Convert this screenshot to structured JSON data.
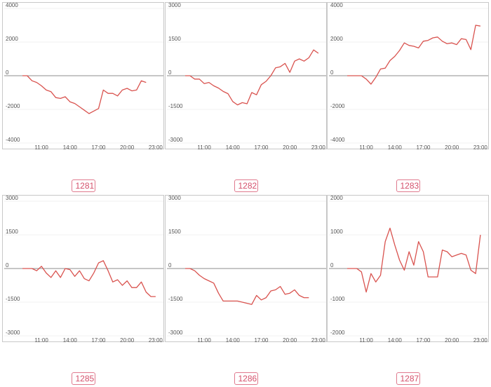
{
  "series_color": "#d9534f",
  "baseline_color": "#8c8c8c",
  "chart_data": [
    {
      "type": "line",
      "label": "1281",
      "x": [
        9,
        9.5,
        10,
        10.5,
        11,
        11.5,
        12,
        12.5,
        13,
        13.5,
        14,
        14.5,
        15,
        15.5,
        16,
        16.5,
        17,
        17.5,
        18,
        18.5,
        19,
        19.5,
        20,
        20.5,
        21,
        21.5,
        22,
        22.5,
        23
      ],
      "y": [
        0,
        0,
        -300,
        -400,
        -600,
        -850,
        -950,
        -1300,
        -1350,
        -1250,
        -1550,
        -1650,
        -1850,
        -2050,
        -2250,
        -2100,
        -1950,
        -850,
        -1050,
        -1050,
        -1200,
        -850,
        -750,
        -900,
        -850,
        -300,
        -400,
        null,
        null
      ],
      "ylim": [
        -4000,
        4000
      ],
      "yticks": [
        -4000,
        -2000,
        0,
        2000,
        4000
      ],
      "xticks": [
        11,
        14,
        17,
        20,
        23
      ],
      "xtick_labels": [
        "11:00",
        "14:00",
        "17:00",
        "20:00",
        "23:00"
      ],
      "grid": true
    },
    {
      "type": "line",
      "label": "1282",
      "x": [
        9,
        9.5,
        10,
        10.5,
        11,
        11.5,
        12,
        12.5,
        13,
        13.5,
        14,
        14.5,
        15,
        15.5,
        16,
        16.5,
        17,
        17.5,
        18,
        18.5,
        19,
        19.5,
        20,
        20.5,
        21,
        21.5,
        22,
        22.5,
        23
      ],
      "y": [
        0,
        0,
        -150,
        -150,
        -350,
        -300,
        -450,
        -550,
        -700,
        -800,
        -1150,
        -1300,
        -1200,
        -1250,
        -750,
        -850,
        -400,
        -250,
        0,
        350,
        400,
        550,
        150,
        650,
        750,
        650,
        800,
        1150,
        1000
      ],
      "ylim": [
        -3000,
        3000
      ],
      "yticks": [
        -3000,
        -1500,
        0,
        1500,
        3000
      ],
      "xticks": [
        11,
        14,
        17,
        20,
        23
      ],
      "xtick_labels": [
        "11:00",
        "14:00",
        "17:00",
        "20:00",
        "23:00"
      ],
      "grid": true
    },
    {
      "type": "line",
      "label": "1283",
      "x": [
        9,
        9.5,
        10,
        10.5,
        11,
        11.5,
        12,
        12.5,
        13,
        13.5,
        14,
        14.5,
        15,
        15.5,
        16,
        16.5,
        17,
        17.5,
        18,
        18.5,
        19,
        19.5,
        20,
        20.5,
        21,
        21.5,
        22,
        22.5,
        23
      ],
      "y": [
        0,
        0,
        0,
        0,
        -200,
        -500,
        -100,
        400,
        450,
        900,
        1150,
        1500,
        1950,
        1800,
        1750,
        1650,
        2050,
        2100,
        2250,
        2300,
        2050,
        1900,
        1950,
        1850,
        2200,
        2150,
        1550,
        3000,
        2950
      ],
      "ylim": [
        -4000,
        4000
      ],
      "yticks": [
        -4000,
        -2000,
        0,
        2000,
        4000
      ],
      "xticks": [
        11,
        14,
        17,
        20,
        23
      ],
      "xtick_labels": [
        "11:00",
        "14:00",
        "17:00",
        "20:00",
        "23:00"
      ],
      "grid": true
    },
    {
      "type": "line",
      "label": "1285",
      "x": [
        9,
        9.5,
        10,
        10.5,
        11,
        11.5,
        12,
        12.5,
        13,
        13.5,
        14,
        14.5,
        15,
        15.5,
        16,
        16.5,
        17,
        17.5,
        18,
        18.5,
        19,
        19.5,
        20,
        20.5,
        21,
        21.5,
        22,
        22.5,
        23
      ],
      "y": [
        0,
        0,
        0,
        -100,
        100,
        -200,
        -400,
        -100,
        -400,
        0,
        -50,
        -350,
        -100,
        -450,
        -550,
        -200,
        250,
        350,
        -100,
        -600,
        -500,
        -750,
        -550,
        -850,
        -850,
        -600,
        -1050,
        -1250,
        -1250
      ],
      "ylim": [
        -3000,
        3000
      ],
      "yticks": [
        -3000,
        -1500,
        0,
        1500,
        3000
      ],
      "xticks": [
        11,
        14,
        17,
        20,
        23
      ],
      "xtick_labels": [
        "11:00",
        "14:00",
        "17:00",
        "20:00",
        "23:00"
      ],
      "grid": true
    },
    {
      "type": "line",
      "label": "1286",
      "x": [
        9,
        9.5,
        10,
        10.5,
        11,
        11.5,
        12,
        12.5,
        13,
        13.5,
        14,
        14.5,
        15,
        15.5,
        16,
        16.5,
        17,
        17.5,
        18,
        18.5,
        19,
        19.5,
        20,
        20.5,
        21,
        21.5,
        22,
        22.5,
        23
      ],
      "y": [
        0,
        0,
        -100,
        -300,
        -450,
        -550,
        -650,
        -1100,
        -1450,
        -1450,
        -1450,
        -1450,
        -1500,
        -1550,
        -1600,
        -1200,
        -1400,
        -1300,
        -1000,
        -950,
        -800,
        -1150,
        -1100,
        -950,
        -1200,
        -1300,
        -1300,
        null,
        null
      ],
      "ylim": [
        -3000,
        3000
      ],
      "yticks": [
        -3000,
        -1500,
        0,
        1500,
        3000
      ],
      "xticks": [
        11,
        14,
        17,
        20,
        23
      ],
      "xtick_labels": [
        "11:00",
        "14:00",
        "17:00",
        "20:00",
        "23:00"
      ],
      "grid": true
    },
    {
      "type": "line",
      "label": "1287",
      "x": [
        9,
        9.5,
        10,
        10.5,
        11,
        11.5,
        12,
        12.5,
        13,
        13.5,
        14,
        14.5,
        15,
        15.5,
        16,
        16.5,
        17,
        17.5,
        18,
        18.5,
        19,
        19.5,
        20,
        20.5,
        21,
        21.5,
        22,
        22.5,
        23
      ],
      "y": [
        0,
        0,
        0,
        -100,
        -700,
        -150,
        -400,
        -200,
        800,
        1200,
        700,
        250,
        -50,
        500,
        100,
        800,
        500,
        -250,
        -250,
        -250,
        550,
        500,
        350,
        400,
        450,
        400,
        -50,
        -150,
        1000
      ],
      "ylim": [
        -2000,
        2000
      ],
      "yticks": [
        -2000,
        -1000,
        0,
        1000,
        2000
      ],
      "xticks": [
        11,
        14,
        17,
        20,
        23
      ],
      "xtick_labels": [
        "11:00",
        "14:00",
        "17:00",
        "20:00",
        "23:00"
      ],
      "grid": true
    }
  ]
}
